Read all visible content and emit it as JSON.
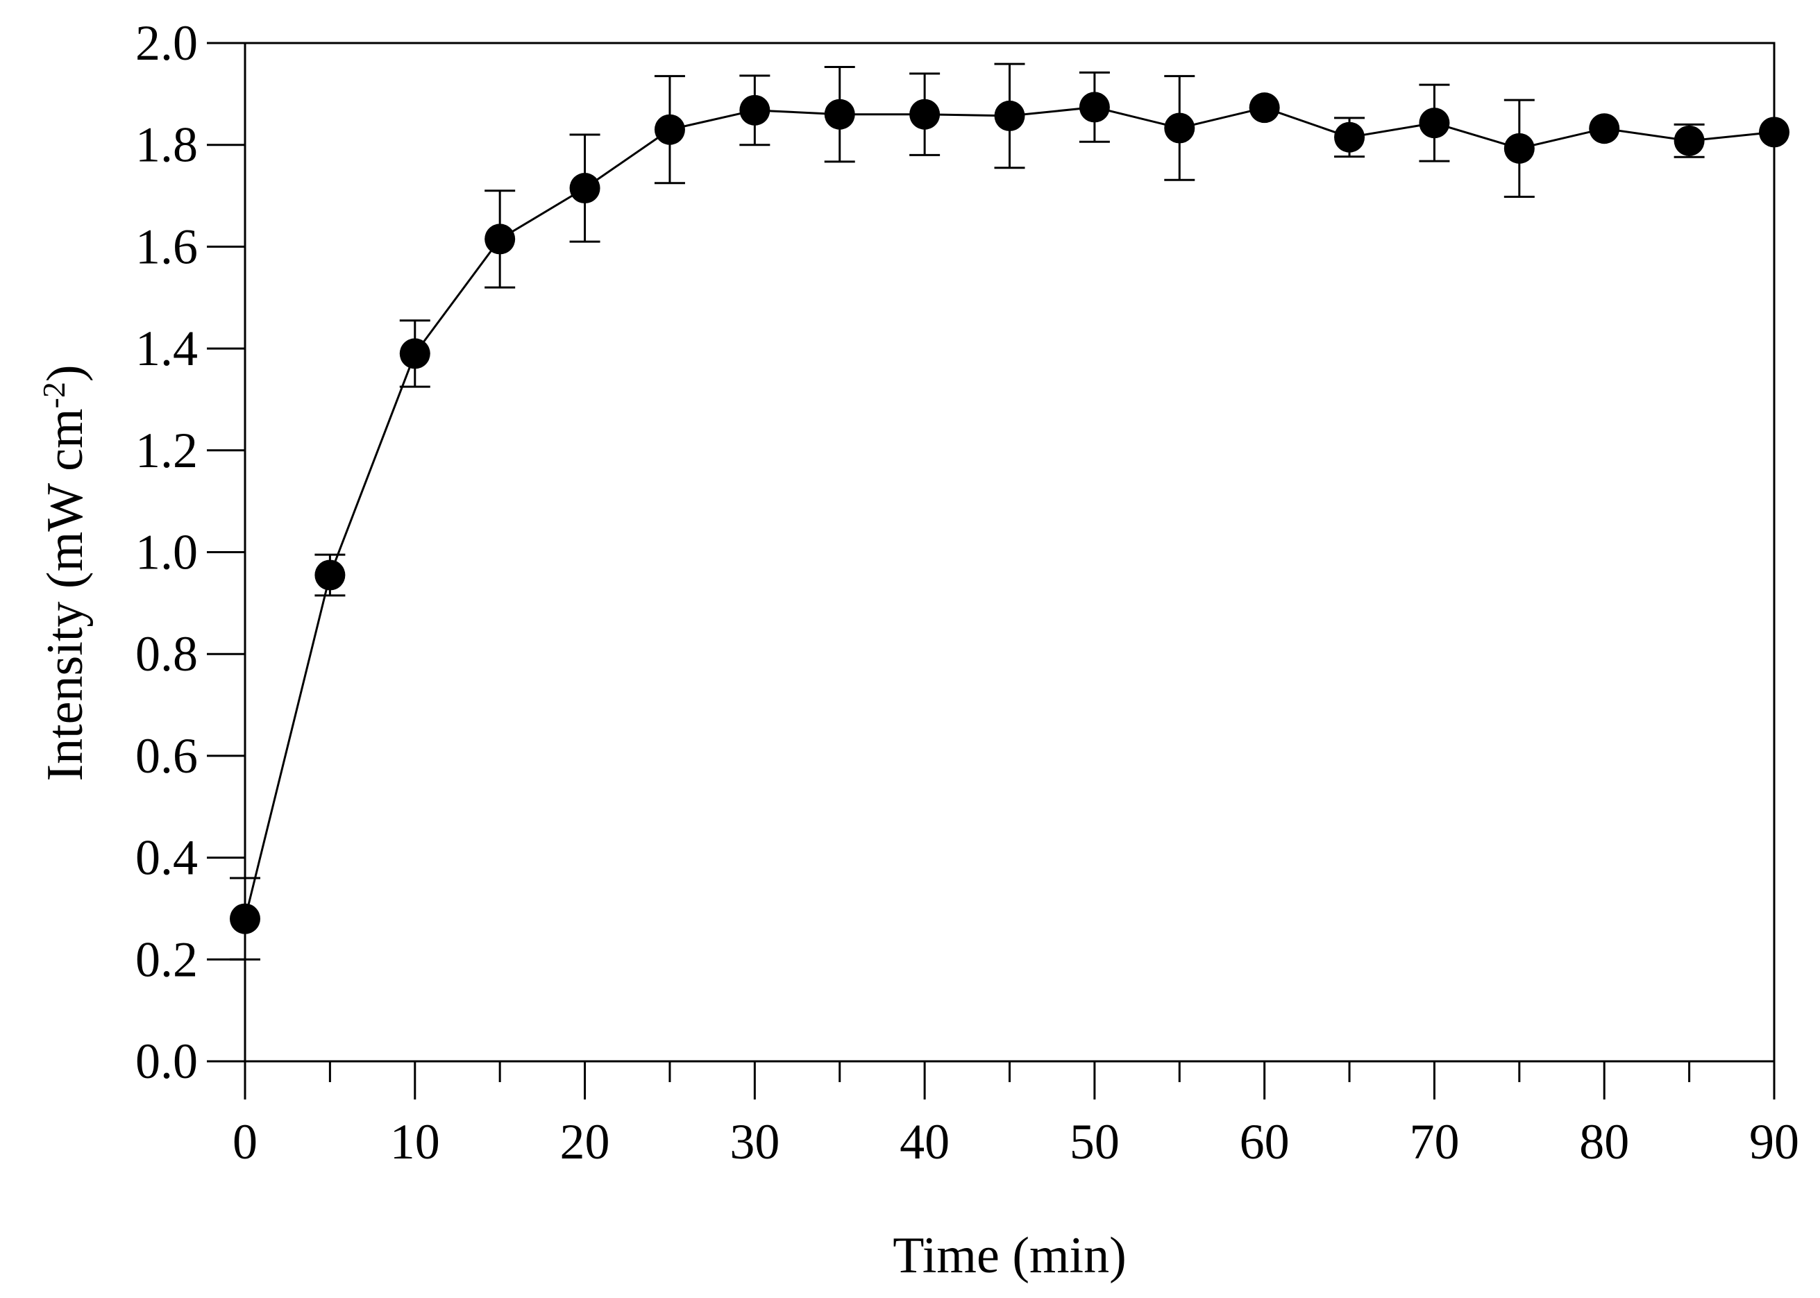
{
  "chart_data": {
    "type": "line",
    "title": "",
    "xlabel": "Time (min)",
    "ylabel_parts": {
      "main": "Intensity (mW cm",
      "sup": "-2",
      "close": ")"
    },
    "xlim": [
      0,
      90
    ],
    "ylim": [
      0,
      2.0
    ],
    "x_ticks": [
      0,
      10,
      20,
      30,
      40,
      50,
      60,
      70,
      80,
      90
    ],
    "x_tick_labels": [
      "0",
      "10",
      "20",
      "30",
      "40",
      "50",
      "60",
      "70",
      "80",
      "90"
    ],
    "x_minor_ticks": [
      5,
      15,
      25,
      35,
      45,
      55,
      65,
      75,
      85
    ],
    "y_ticks": [
      0,
      0.2,
      0.4,
      0.6,
      0.8,
      1.0,
      1.2,
      1.4,
      1.6,
      1.8,
      2.0
    ],
    "y_tick_labels": [
      "0.0",
      "0.2",
      "0.4",
      "0.6",
      "0.8",
      "1.0",
      "1.2",
      "1.4",
      "1.6",
      "1.8",
      "2.0"
    ],
    "grid": false,
    "legend": "none",
    "series": [
      {
        "name": "Intensity",
        "color": "#000000",
        "x": [
          0,
          5,
          10,
          15,
          20,
          25,
          30,
          35,
          40,
          45,
          50,
          55,
          60,
          65,
          70,
          75,
          80,
          85,
          90
        ],
        "y": [
          0.28,
          0.955,
          1.39,
          1.615,
          1.715,
          1.83,
          1.868,
          1.86,
          1.86,
          1.857,
          1.874,
          1.833,
          1.873,
          1.815,
          1.843,
          1.793,
          1.832,
          1.808,
          1.825
        ],
        "err": [
          0.08,
          0.04,
          0.065,
          0.095,
          0.105,
          0.105,
          0.068,
          0.093,
          0.08,
          0.102,
          0.068,
          0.102,
          0.0,
          0.038,
          0.075,
          0.095,
          0.0,
          0.032,
          0.0
        ]
      }
    ]
  }
}
